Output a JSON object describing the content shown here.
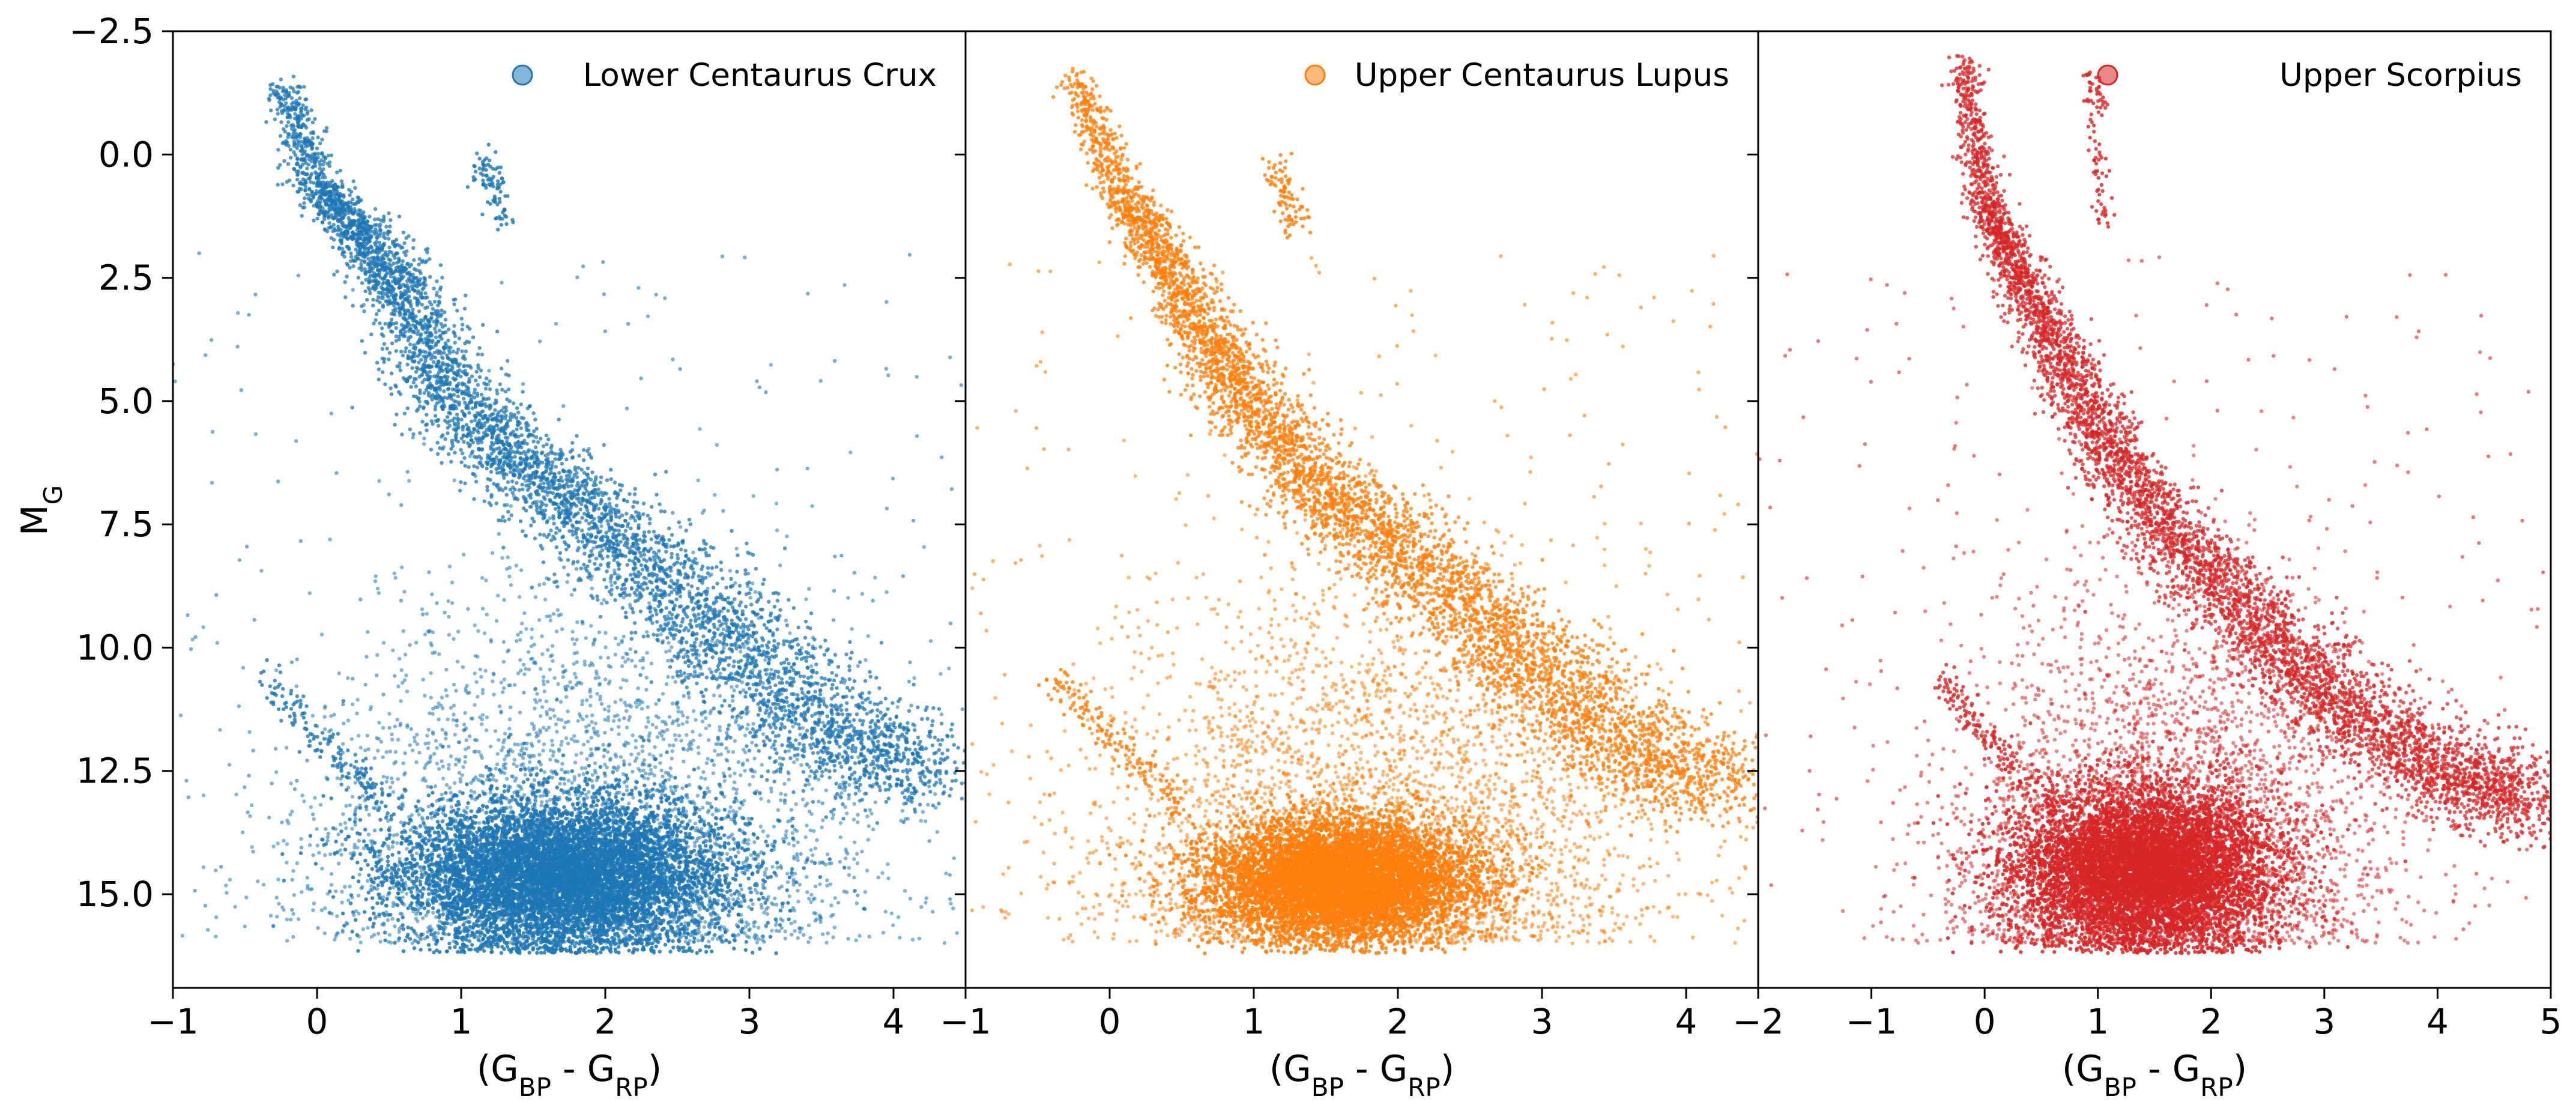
{
  "chart_data": {
    "type": "scatter",
    "shared_y_axis": {
      "label_main": "M",
      "label_sub": "G",
      "range": [
        16.9,
        -2.5
      ],
      "inverted": true,
      "ticks": [
        "−2.5",
        "0.0",
        "2.5",
        "5.0",
        "7.5",
        "10.0",
        "12.5",
        "15.0"
      ],
      "tick_values": [
        -2.5,
        0.0,
        2.5,
        5.0,
        7.5,
        10.0,
        12.5,
        15.0
      ]
    },
    "grid": false,
    "legend_placement": "top-right",
    "panels": [
      {
        "series_name": "Lower Centaurus Crux",
        "color": "#1f77b4",
        "xlim": [
          -1,
          4.5
        ],
        "x_ticks": [
          "−1",
          "0",
          "1",
          "2",
          "3",
          "4"
        ],
        "x_tick_values": [
          -1,
          0,
          1,
          2,
          3,
          4
        ],
        "xlabel": {
          "a": "(G",
          "b": "BP",
          "c": " - G",
          "d": "RP",
          "e": ")"
        },
        "main_sequence": [
          [
            -0.25,
            -1.5
          ],
          [
            0.0,
            0.6
          ],
          [
            0.3,
            1.6
          ],
          [
            0.6,
            2.8
          ],
          [
            0.9,
            4.6
          ],
          [
            1.3,
            6.0
          ],
          [
            1.8,
            7.2
          ],
          [
            2.4,
            8.6
          ],
          [
            3.0,
            10.2
          ],
          [
            3.6,
            11.8
          ],
          [
            4.2,
            12.6
          ]
        ],
        "dense_clump": {
          "x": 1.7,
          "y": 14.6,
          "sx": 0.55,
          "sy": 0.75
        },
        "giant_branch": [
          [
            1.15,
            0.1
          ],
          [
            1.3,
            1.4
          ]
        ]
      },
      {
        "series_name": "Upper Centaurus Lupus",
        "color": "#ff7f0e",
        "xlim": [
          -1,
          4.5
        ],
        "x_ticks": [
          "−1",
          "0",
          "1",
          "2",
          "3",
          "4"
        ],
        "x_tick_values": [
          -1,
          0,
          1,
          2,
          3,
          4
        ],
        "xlabel": {
          "a": "(G",
          "b": "BP",
          "c": " - G",
          "d": "RP",
          "e": ")"
        },
        "main_sequence": [
          [
            -0.25,
            -1.6
          ],
          [
            0.1,
            0.8
          ],
          [
            0.4,
            2.2
          ],
          [
            0.7,
            3.8
          ],
          [
            1.0,
            5.2
          ],
          [
            1.4,
            6.6
          ],
          [
            1.9,
            7.8
          ],
          [
            2.5,
            9.2
          ],
          [
            3.0,
            10.6
          ],
          [
            3.6,
            12.0
          ],
          [
            4.3,
            13.0
          ]
        ],
        "dense_clump": {
          "x": 1.6,
          "y": 14.7,
          "sx": 0.45,
          "sy": 0.6
        },
        "giant_branch": [
          [
            1.15,
            0.2
          ],
          [
            1.3,
            1.5
          ]
        ]
      },
      {
        "series_name": "Upper Scorpius",
        "color": "#d62728",
        "xlim": [
          -2,
          5
        ],
        "x_ticks": [
          "−2",
          "−1",
          "0",
          "1",
          "2",
          "3",
          "4",
          "5"
        ],
        "x_tick_values": [
          -2,
          -1,
          0,
          1,
          2,
          3,
          4,
          5
        ],
        "xlabel": {
          "a": "(G",
          "b": "BP",
          "c": " - G",
          "d": "RP",
          "e": ")"
        },
        "main_sequence": [
          [
            -0.2,
            -2.0
          ],
          [
            0.0,
            0.9
          ],
          [
            0.3,
            2.4
          ],
          [
            0.7,
            4.2
          ],
          [
            1.1,
            6.0
          ],
          [
            1.6,
            7.6
          ],
          [
            2.2,
            9.0
          ],
          [
            2.8,
            10.4
          ],
          [
            3.4,
            11.6
          ],
          [
            4.2,
            12.6
          ],
          [
            4.8,
            13.2
          ]
        ],
        "dense_clump": {
          "x": 1.4,
          "y": 14.5,
          "sx": 0.55,
          "sy": 0.8
        },
        "giant_branch": [
          [
            0.95,
            -1.8
          ],
          [
            1.05,
            1.4
          ]
        ]
      }
    ]
  }
}
